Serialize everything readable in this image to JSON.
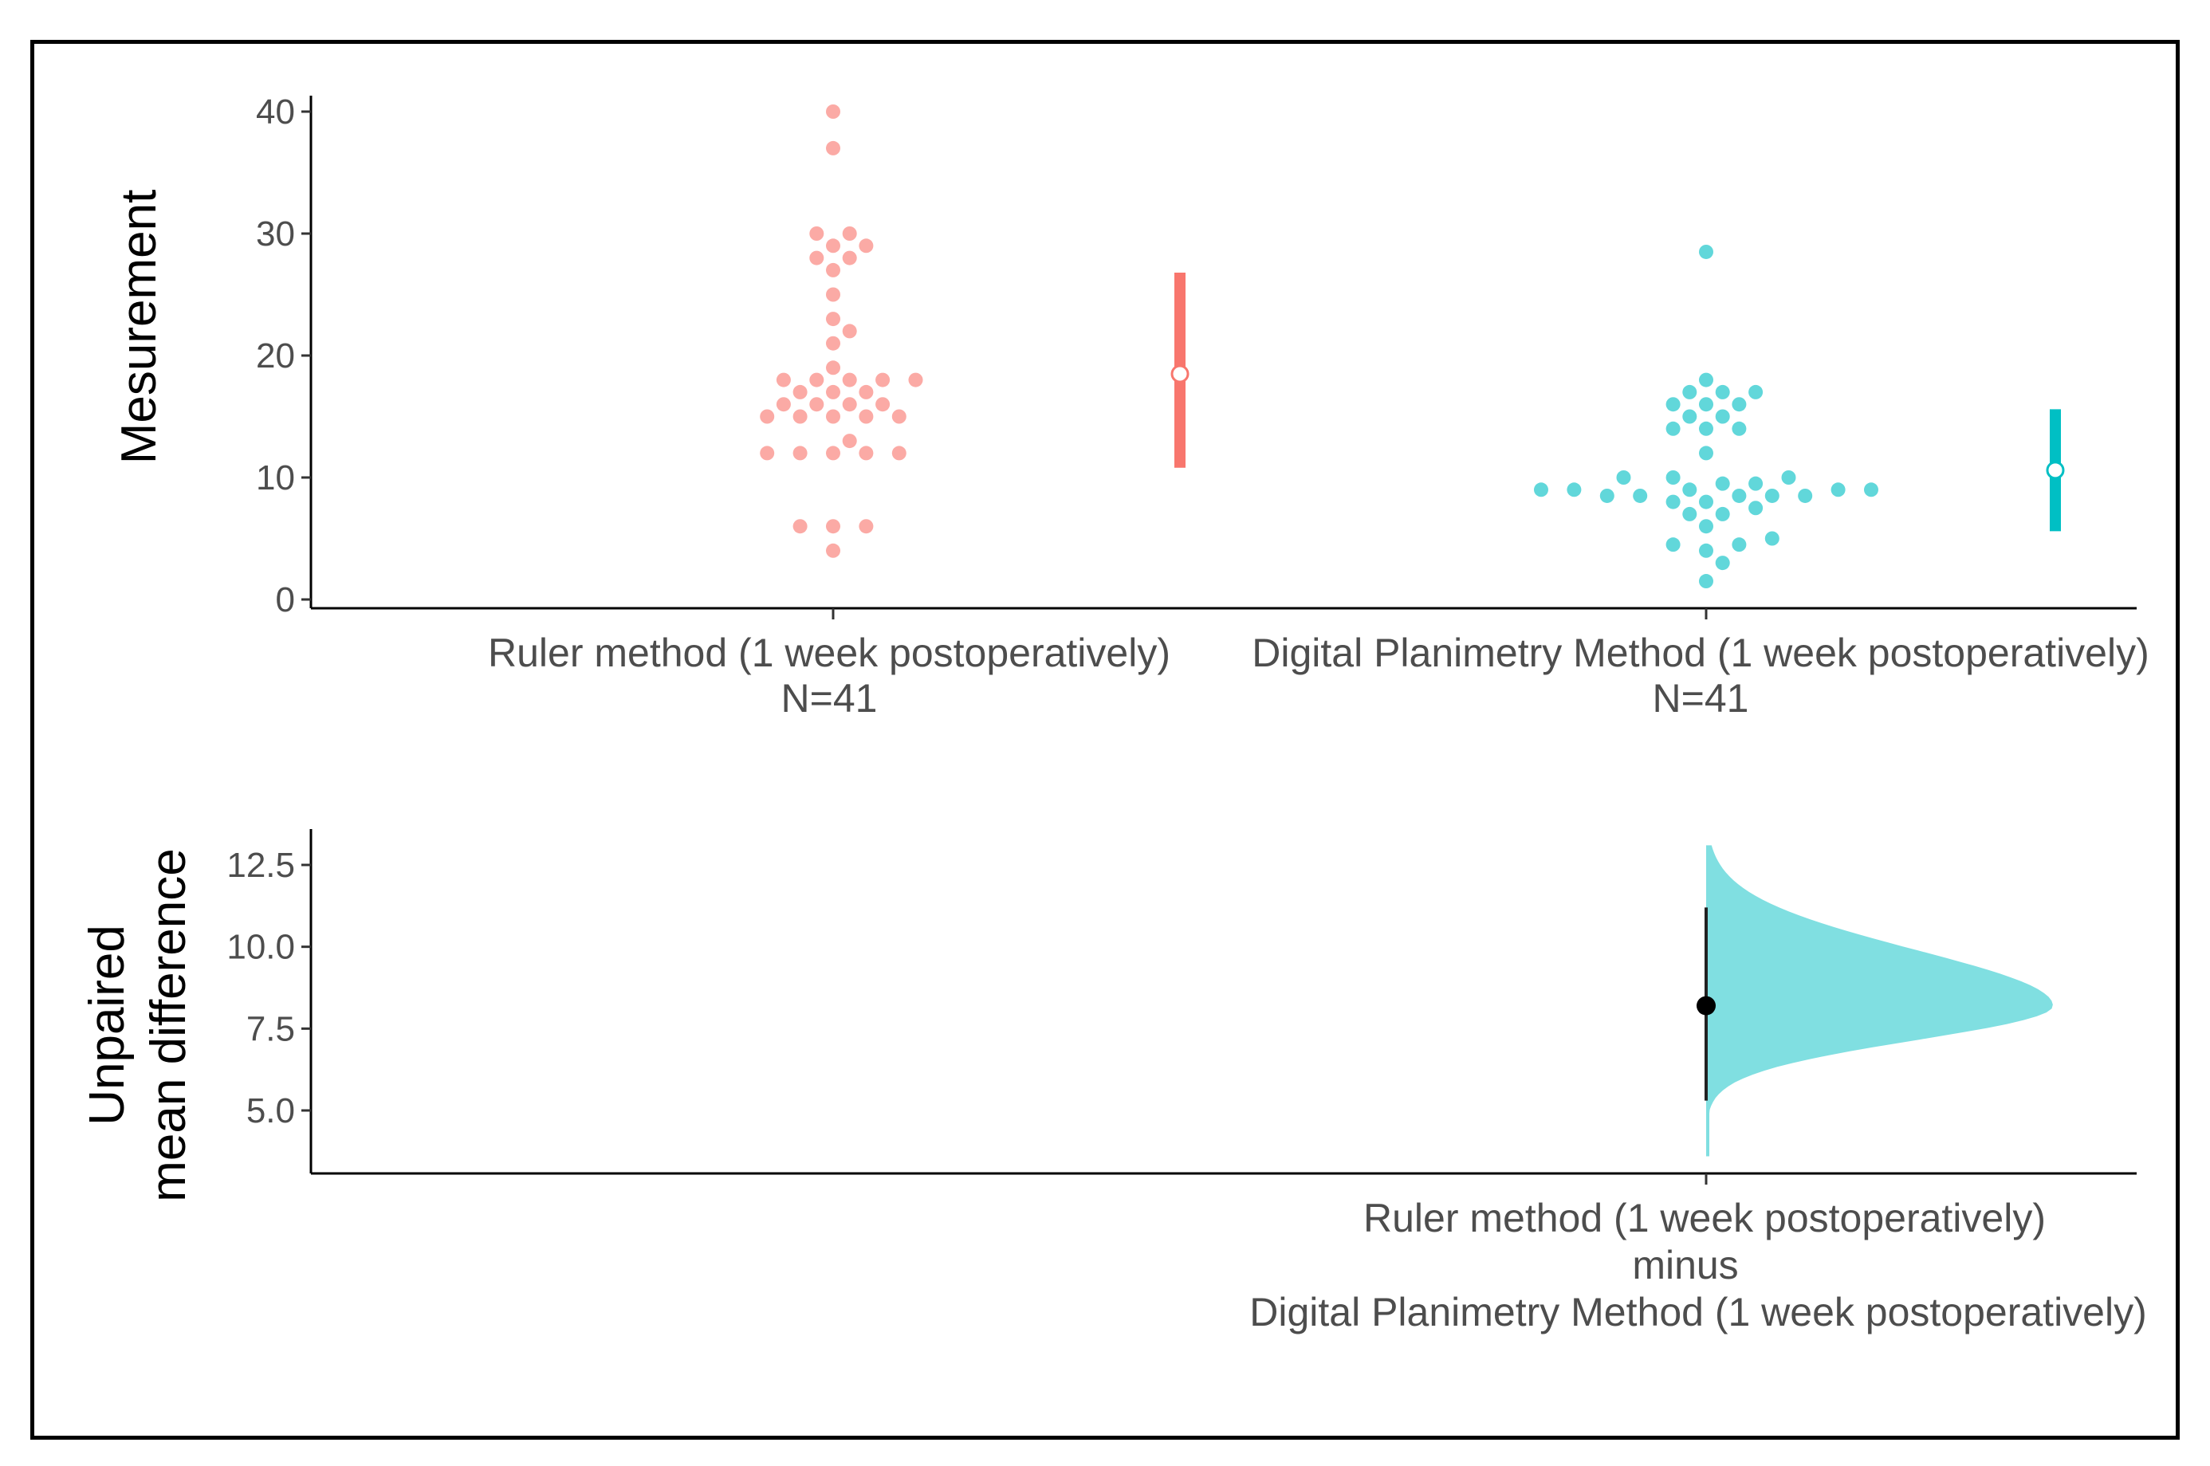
{
  "chart_data": [
    {
      "type": "scatter",
      "subtype": "swarm (Gardner-Altman estimation plot, upper panel)",
      "ylabel": "Mesurement",
      "ylim": [
        0,
        40
      ],
      "yticks": [
        0,
        10,
        20,
        30,
        40
      ],
      "grid": false,
      "groups": [
        {
          "name": "Ruler method (1 week postoperatively)",
          "n_label": "N=41",
          "color": "#f8766d",
          "values": [
            40,
            37,
            30,
            30,
            29,
            29,
            28,
            28,
            27,
            25,
            23,
            22,
            21,
            19,
            18,
            18,
            18,
            18,
            18,
            17,
            17,
            17,
            16,
            16,
            16,
            16,
            15,
            15,
            15,
            15,
            15,
            13,
            12,
            12,
            12,
            12,
            12,
            6,
            6,
            6,
            4
          ],
          "summary": {
            "mean": 18.5,
            "lower": 10.8,
            "upper": 26.8
          }
        },
        {
          "name": "Digital Planimetry Method (1 week postoperatively)",
          "n_label": "N=41",
          "color": "#00bfc4",
          "values": [
            28.5,
            18,
            17,
            17,
            17,
            16,
            16,
            16,
            15,
            15,
            14,
            14,
            14,
            12,
            10,
            10,
            10,
            9.5,
            9.5,
            9,
            9,
            9,
            9,
            9,
            8.5,
            8.5,
            8.5,
            8.5,
            8.5,
            8,
            8,
            7.5,
            7,
            7,
            6,
            5,
            4.5,
            4.5,
            4,
            3,
            1.5
          ],
          "summary": {
            "mean": 10.6,
            "lower": 5.6,
            "upper": 15.6
          }
        }
      ]
    },
    {
      "type": "area",
      "subtype": "bootstrap distribution (Gardner-Altman estimation plot, lower panel)",
      "ylabel_line1": "Unpaired",
      "ylabel_line2": "mean difference",
      "ylim": [
        3.5,
        13.5
      ],
      "yticks": [
        "5.0",
        "7.5",
        "10.0",
        "12.5"
      ],
      "ytick_values": [
        5.0,
        7.5,
        10.0,
        12.5
      ],
      "grid": false,
      "xlabel_lines": [
        "Ruler method (1 week postoperatively)",
        "minus",
        "Digital Planimetry Method (1 week postoperatively)"
      ],
      "color": "#80dfe1",
      "distribution": {
        "min": 3.6,
        "max": 13.1,
        "mode": 8.2
      },
      "mean_difference": 8.2,
      "ci": [
        5.3,
        11.2
      ]
    }
  ]
}
